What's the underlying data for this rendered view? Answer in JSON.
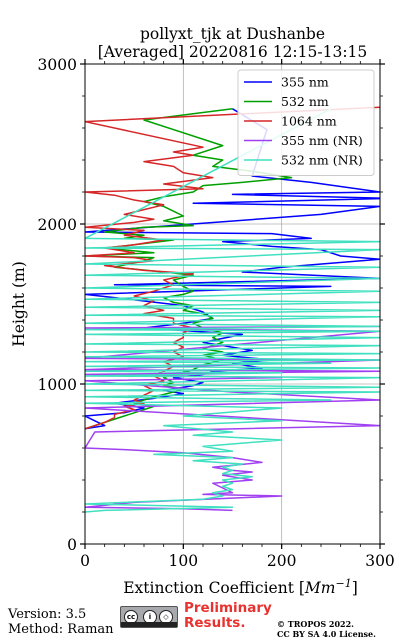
{
  "chart_data": {
    "type": "line",
    "title": "pollyxt_tjk at Dushanbe",
    "subtitle": "[Averaged] 20220816 12:15-13:15",
    "xlabel_main": "Extinction Coefficient [",
    "xlabel_unit": "Mm",
    "xlabel_exp": "−1",
    "xlabel_end": "]",
    "ylabel": "Height (m)",
    "xlim": [
      0,
      300
    ],
    "ylim": [
      0,
      3000
    ],
    "xticks": [
      0,
      100,
      200,
      300
    ],
    "yticks": [
      0,
      1000,
      2000,
      3000
    ],
    "grid": true,
    "legend_position": "top-right",
    "series": [
      {
        "name": "355 nm",
        "color": "#0000ff",
        "points": [
          [
            150,
            2720
          ],
          [
            185,
            2590
          ],
          [
            170,
            2300
          ],
          [
            230,
            2260
          ],
          [
            300,
            2200
          ],
          [
            150,
            2185
          ],
          [
            310,
            2160
          ],
          [
            110,
            2130
          ],
          [
            300,
            2110
          ],
          [
            240,
            2060
          ],
          [
            0,
            1950
          ],
          [
            190,
            1940
          ],
          [
            230,
            1910
          ],
          [
            140,
            1890
          ],
          [
            190,
            1860
          ],
          [
            240,
            1840
          ],
          [
            260,
            1800
          ],
          [
            300,
            1780
          ],
          [
            200,
            1730
          ],
          [
            160,
            1700
          ],
          [
            300,
            1660
          ],
          [
            30,
            1620
          ],
          [
            250,
            1610
          ],
          [
            0,
            1560
          ],
          [
            30,
            1540
          ],
          [
            100,
            1490
          ],
          [
            120,
            1450
          ],
          [
            130,
            1410
          ],
          [
            100,
            1380
          ],
          [
            60,
            1350
          ],
          [
            160,
            1310
          ],
          [
            120,
            1260
          ],
          [
            150,
            1230
          ],
          [
            170,
            1210
          ],
          [
            140,
            1180
          ],
          [
            190,
            1150
          ],
          [
            150,
            1130
          ],
          [
            180,
            1100
          ],
          [
            130,
            1080
          ],
          [
            120,
            1060
          ],
          [
            90,
            1040
          ],
          [
            120,
            1010
          ],
          [
            110,
            990
          ],
          [
            80,
            960
          ],
          [
            100,
            940
          ],
          [
            70,
            910
          ],
          [
            30,
            880
          ],
          [
            60,
            850
          ],
          [
            40,
            820
          ],
          [
            0,
            800
          ],
          [
            10,
            770
          ],
          [
            20,
            740
          ],
          [
            0,
            720
          ]
        ]
      },
      {
        "name": "532 nm",
        "color": "#00a000",
        "points": [
          [
            150,
            2720
          ],
          [
            60,
            2650
          ],
          [
            140,
            2490
          ],
          [
            110,
            2430
          ],
          [
            140,
            2400
          ],
          [
            130,
            2360
          ],
          [
            170,
            2330
          ],
          [
            210,
            2290
          ],
          [
            160,
            2260
          ],
          [
            120,
            2240
          ],
          [
            110,
            2200
          ],
          [
            80,
            2170
          ],
          [
            60,
            2140
          ],
          [
            80,
            2110
          ],
          [
            90,
            2080
          ],
          [
            100,
            2050
          ],
          [
            80,
            2020
          ],
          [
            110,
            1990
          ],
          [
            60,
            1980
          ],
          [
            20,
            1950
          ],
          [
            60,
            1930
          ],
          [
            40,
            1910
          ],
          [
            90,
            1900
          ],
          [
            50,
            1870
          ],
          [
            20,
            1850
          ],
          [
            70,
            1820
          ],
          [
            0,
            1800
          ],
          [
            70,
            1790
          ],
          [
            60,
            1770
          ],
          [
            30,
            1730
          ],
          [
            80,
            1700
          ],
          [
            110,
            1680
          ],
          [
            90,
            1650
          ],
          [
            100,
            1610
          ],
          [
            110,
            1580
          ],
          [
            100,
            1560
          ],
          [
            80,
            1540
          ],
          [
            90,
            1510
          ],
          [
            110,
            1490
          ],
          [
            100,
            1460
          ],
          [
            120,
            1440
          ],
          [
            130,
            1410
          ],
          [
            110,
            1380
          ],
          [
            120,
            1350
          ],
          [
            140,
            1320
          ],
          [
            130,
            1290
          ],
          [
            140,
            1260
          ],
          [
            120,
            1220
          ],
          [
            140,
            1200
          ],
          [
            120,
            1180
          ],
          [
            140,
            1150
          ],
          [
            120,
            1120
          ],
          [
            110,
            1090
          ],
          [
            90,
            1060
          ],
          [
            80,
            1040
          ],
          [
            90,
            1010
          ],
          [
            80,
            990
          ],
          [
            100,
            970
          ],
          [
            90,
            950
          ],
          [
            70,
            920
          ],
          [
            60,
            900
          ],
          [
            50,
            880
          ],
          [
            70,
            860
          ],
          [
            60,
            840
          ],
          [
            50,
            820
          ],
          [
            40,
            800
          ],
          [
            20,
            760
          ],
          [
            0,
            720
          ]
        ]
      },
      {
        "name": "1064 nm",
        "color": "#d62728",
        "points": [
          [
            300,
            2730
          ],
          [
            0,
            2640
          ],
          [
            120,
            2480
          ],
          [
            90,
            2450
          ],
          [
            110,
            2430
          ],
          [
            60,
            2390
          ],
          [
            90,
            2360
          ],
          [
            100,
            2320
          ],
          [
            130,
            2290
          ],
          [
            80,
            2250
          ],
          [
            120,
            2220
          ],
          [
            0,
            2200
          ],
          [
            30,
            2180
          ],
          [
            50,
            2150
          ],
          [
            80,
            2120
          ],
          [
            60,
            2090
          ],
          [
            40,
            2060
          ],
          [
            70,
            2030
          ],
          [
            50,
            2010
          ],
          [
            0,
            1980
          ],
          [
            60,
            1960
          ],
          [
            40,
            1930
          ],
          [
            80,
            1900
          ],
          [
            50,
            1870
          ],
          [
            20,
            1850
          ],
          [
            50,
            1820
          ],
          [
            0,
            1800
          ],
          [
            50,
            1790
          ],
          [
            70,
            1770
          ],
          [
            20,
            1740
          ],
          [
            60,
            1710
          ],
          [
            110,
            1690
          ],
          [
            80,
            1650
          ],
          [
            90,
            1620
          ],
          [
            70,
            1580
          ],
          [
            50,
            1550
          ],
          [
            70,
            1520
          ],
          [
            60,
            1490
          ],
          [
            80,
            1460
          ],
          [
            60,
            1440
          ],
          [
            90,
            1410
          ],
          [
            90,
            1380
          ],
          [
            110,
            1350
          ],
          [
            100,
            1320
          ],
          [
            100,
            1290
          ],
          [
            90,
            1260
          ],
          [
            100,
            1230
          ],
          [
            90,
            1200
          ],
          [
            100,
            1170
          ],
          [
            80,
            1140
          ],
          [
            90,
            1110
          ],
          [
            80,
            1080
          ],
          [
            70,
            1050
          ],
          [
            80,
            1020
          ],
          [
            60,
            990
          ],
          [
            70,
            960
          ],
          [
            60,
            930
          ],
          [
            50,
            900
          ],
          [
            60,
            880
          ],
          [
            40,
            860
          ],
          [
            50,
            840
          ],
          [
            30,
            810
          ],
          [
            30,
            790
          ],
          [
            20,
            760
          ],
          [
            0,
            720
          ]
        ]
      },
      {
        "name": "355 nm (NR)",
        "color": "#a040f0",
        "points": [
          [
            300,
            1360
          ],
          [
            0,
            1350
          ],
          [
            300,
            1330
          ],
          [
            0,
            1160
          ],
          [
            300,
            1150
          ],
          [
            0,
            1090
          ],
          [
            300,
            1080
          ],
          [
            0,
            1060
          ],
          [
            200,
            1040
          ],
          [
            0,
            1020
          ],
          [
            150,
            950
          ],
          [
            300,
            900
          ],
          [
            0,
            850
          ],
          [
            300,
            740
          ],
          [
            10,
            700
          ],
          [
            0,
            600
          ],
          [
            40,
            590
          ],
          [
            100,
            570
          ],
          [
            150,
            540
          ],
          [
            180,
            510
          ],
          [
            130,
            480
          ],
          [
            150,
            460
          ],
          [
            170,
            450
          ],
          [
            140,
            430
          ],
          [
            160,
            410
          ],
          [
            170,
            400
          ],
          [
            130,
            380
          ],
          [
            140,
            350
          ],
          [
            150,
            320
          ],
          [
            120,
            310
          ],
          [
            200,
            300
          ],
          [
            50,
            260
          ],
          [
            0,
            230
          ],
          [
            100,
            220
          ],
          [
            150,
            210
          ]
        ]
      },
      {
        "name": "532 nm (NR)",
        "color": "#40e0c0",
        "points": [
          [
            250,
            2720
          ],
          [
            0,
            1910
          ],
          [
            300,
            1890
          ],
          [
            0,
            1850
          ],
          [
            300,
            1840
          ],
          [
            0,
            1750
          ],
          [
            300,
            1730
          ],
          [
            0,
            1680
          ],
          [
            300,
            1660
          ],
          [
            0,
            1600
          ],
          [
            300,
            1580
          ],
          [
            0,
            1530
          ],
          [
            300,
            1510
          ],
          [
            0,
            1480
          ],
          [
            300,
            1460
          ],
          [
            0,
            1430
          ],
          [
            300,
            1420
          ],
          [
            0,
            1380
          ],
          [
            300,
            1360
          ],
          [
            0,
            1340
          ],
          [
            300,
            1330
          ],
          [
            0,
            1310
          ],
          [
            300,
            1290
          ],
          [
            0,
            1250
          ],
          [
            300,
            1240
          ],
          [
            0,
            1200
          ],
          [
            300,
            1190
          ],
          [
            0,
            1170
          ],
          [
            300,
            1150
          ],
          [
            0,
            1140
          ],
          [
            250,
            1130
          ],
          [
            0,
            1110
          ],
          [
            300,
            1100
          ],
          [
            0,
            1080
          ],
          [
            200,
            1070
          ],
          [
            0,
            1050
          ],
          [
            300,
            1040
          ],
          [
            0,
            1000
          ],
          [
            300,
            980
          ],
          [
            0,
            960
          ],
          [
            300,
            950
          ],
          [
            0,
            920
          ],
          [
            250,
            900
          ],
          [
            0,
            880
          ],
          [
            200,
            850
          ],
          [
            100,
            800
          ],
          [
            200,
            770
          ],
          [
            80,
            740
          ],
          [
            150,
            700
          ],
          [
            110,
            680
          ],
          [
            200,
            650
          ],
          [
            120,
            610
          ],
          [
            150,
            580
          ],
          [
            70,
            560
          ],
          [
            150,
            540
          ],
          [
            110,
            520
          ],
          [
            160,
            500
          ],
          [
            140,
            480
          ],
          [
            150,
            460
          ],
          [
            140,
            440
          ],
          [
            170,
            420
          ],
          [
            140,
            400
          ],
          [
            150,
            380
          ],
          [
            140,
            360
          ],
          [
            150,
            340
          ],
          [
            130,
            320
          ],
          [
            140,
            300
          ],
          [
            120,
            280
          ],
          [
            0,
            250
          ],
          [
            150,
            230
          ],
          [
            20,
            210
          ],
          [
            0,
            200
          ]
        ]
      }
    ]
  },
  "footer": {
    "version": "Version: 3.5",
    "method": "Method: Raman",
    "license_icons": [
      "cc-icon",
      "by-icon",
      "sa-icon"
    ],
    "preliminary": "Preliminary",
    "results": "Results.",
    "copyright1": "© TROPOS 2022.",
    "copyright2": "CC BY SA 4.0 License."
  },
  "colors": {
    "preliminary": "#e8322f"
  }
}
